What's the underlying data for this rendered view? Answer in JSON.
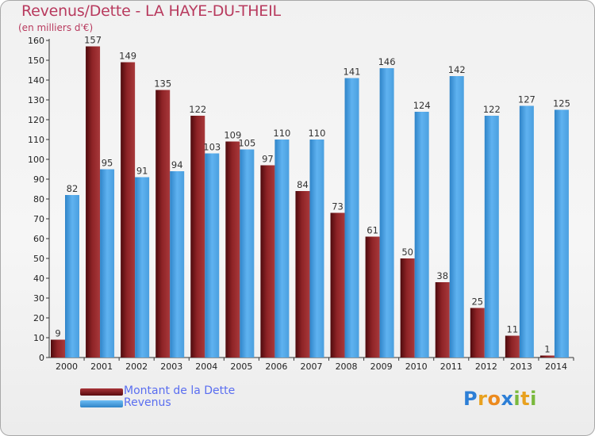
{
  "header": {
    "title": "Revenus/Dette - LA HAYE-DU-THEIL",
    "subtitle": "(en milliers d'€)"
  },
  "chart_data": {
    "type": "bar",
    "title": "Revenus/Dette - LA HAYE-DU-THEIL",
    "ylabel": "(en milliers d'€)",
    "xlabel": "",
    "ylim": [
      0,
      160
    ],
    "yticks": [
      0,
      10,
      20,
      30,
      40,
      50,
      60,
      70,
      80,
      90,
      100,
      110,
      120,
      130,
      140,
      150,
      160
    ],
    "grid": false,
    "categories": [
      "2000",
      "2001",
      "2002",
      "2003",
      "2004",
      "2005",
      "2006",
      "2007",
      "2008",
      "2009",
      "2010",
      "2011",
      "2012",
      "2013",
      "2014"
    ],
    "series": [
      {
        "name": "Montant de la Dette",
        "color": "#7a1518",
        "values": [
          9,
          157,
          149,
          135,
          122,
          109,
          97,
          84,
          73,
          61,
          50,
          38,
          25,
          11,
          1
        ]
      },
      {
        "name": "Revenus",
        "color": "#4aa3e6",
        "values": [
          82,
          95,
          91,
          94,
          103,
          105,
          110,
          110,
          141,
          146,
          124,
          142,
          122,
          127,
          125
        ]
      }
    ]
  },
  "legend": {
    "items": [
      {
        "label": "Montant de la Dette"
      },
      {
        "label": "Revenus"
      }
    ]
  },
  "logo": {
    "letters": [
      "P",
      "r",
      "o",
      "x",
      "i",
      "t",
      "i"
    ]
  }
}
